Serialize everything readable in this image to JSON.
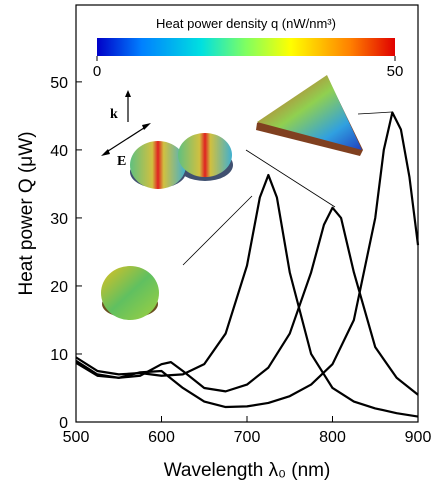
{
  "chart_data": {
    "type": "line",
    "xlabel": "Wavelength λ₀ (nm)",
    "ylabel": "Heat power Q (μW)",
    "xlim": [
      500,
      900
    ],
    "ylim": [
      0,
      61.3
    ],
    "xticks": [
      500,
      600,
      700,
      800,
      900
    ],
    "yticks": [
      0,
      10,
      20,
      30,
      40,
      50
    ],
    "series": [
      {
        "color": "#000000",
        "x": [
          500,
          525,
          550,
          575,
          600,
          625,
          650,
          675,
          700,
          715,
          725,
          735,
          750,
          775,
          800,
          825,
          850,
          875,
          900
        ],
        "values": [
          9.5,
          7.5,
          7,
          7.2,
          6.8,
          7,
          8.5,
          13,
          23,
          33,
          36.3,
          33,
          22,
          10,
          5,
          3,
          2,
          1.3,
          0.8
        ]
      },
      {
        "color": "#000000",
        "x": [
          500,
          525,
          550,
          575,
          600,
          611,
          625,
          650,
          675,
          700,
          725,
          750,
          775,
          790,
          800,
          810,
          825,
          850,
          875,
          900
        ],
        "values": [
          9,
          7,
          6.5,
          6.8,
          8.5,
          8.8,
          7.5,
          5,
          4.5,
          5.5,
          8,
          13,
          22,
          29,
          31.5,
          30,
          22,
          11,
          6.5,
          4
        ]
      },
      {
        "color": "#000000",
        "x": [
          500,
          525,
          550,
          575,
          600,
          625,
          650,
          675,
          700,
          725,
          750,
          775,
          800,
          825,
          850,
          860,
          870,
          880,
          890,
          900
        ],
        "values": [
          8.7,
          6.8,
          6.5,
          7.3,
          7.5,
          5,
          3,
          2.2,
          2.3,
          2.8,
          3.8,
          5.5,
          8.5,
          15,
          30,
          40,
          45.5,
          43,
          36,
          26
        ]
      }
    ],
    "colorbar": {
      "label": "Heat power density q (nW/nm³)",
      "lim": [
        0,
        50
      ],
      "ticks": [
        0,
        50
      ]
    },
    "annotations": [
      "k",
      "E"
    ]
  }
}
